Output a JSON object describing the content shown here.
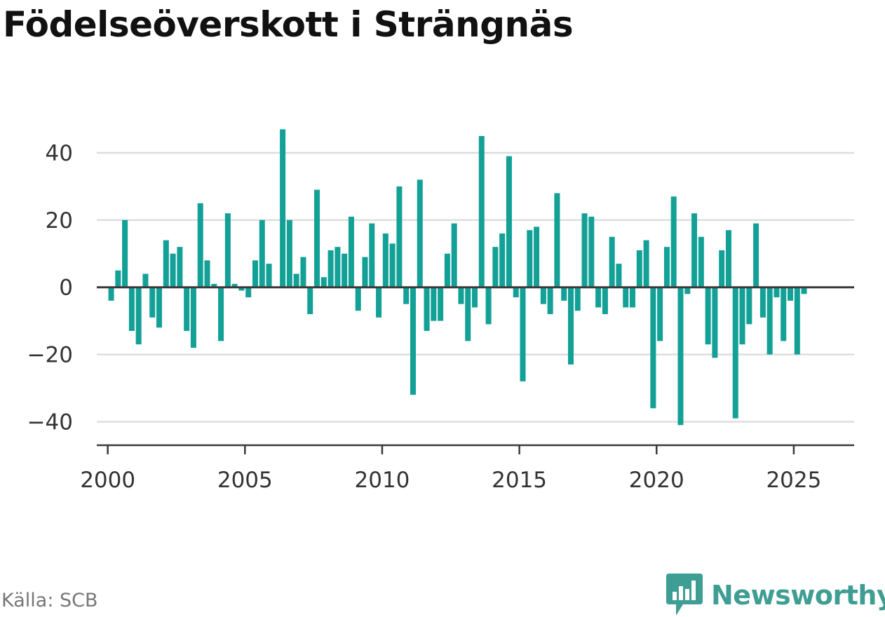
{
  "title": "Födelseöverskott i Strängnäs",
  "source": "Källa: SCB",
  "brand": {
    "name": "Newsworthy",
    "color": "#3f9e93",
    "icon": "bar-chart-speech-bubble-icon"
  },
  "colors": {
    "bar": "#13a197",
    "zero_line": "#3a3a3a",
    "grid": "#dddddd",
    "axis_text": "#333333"
  },
  "chart_data": {
    "type": "bar",
    "title": "Födelseöverskott i Strängnäs",
    "xlabel": "",
    "ylabel": "",
    "x_tick_labels": [
      "2000",
      "2005",
      "2010",
      "2015",
      "2020",
      "2025"
    ],
    "y_tick_labels": [
      "−40",
      "−20",
      "0",
      "20",
      "40"
    ],
    "y_ticks": [
      -40,
      -20,
      0,
      20,
      40
    ],
    "ylim": [
      -47,
      50
    ],
    "xlim": [
      1999.6,
      2027.2
    ],
    "grid": true,
    "start_year": 2000,
    "periods_per_year": 4,
    "values": [
      -4,
      5,
      20,
      -13,
      -17,
      4,
      -9,
      -12,
      14,
      10,
      12,
      -13,
      -18,
      25,
      8,
      1,
      -16,
      22,
      1,
      -1,
      -3,
      8,
      20,
      7,
      0,
      47,
      20,
      4,
      9,
      -8,
      29,
      3,
      11,
      12,
      10,
      21,
      -7,
      9,
      19,
      -9,
      16,
      13,
      30,
      -5,
      -32,
      32,
      -13,
      -10,
      -10,
      10,
      19,
      -5,
      -16,
      -6,
      45,
      -11,
      12,
      16,
      39,
      -3,
      -28,
      17,
      18,
      -5,
      -8,
      28,
      -4,
      -23,
      -7,
      22,
      21,
      -6,
      -8,
      15,
      7,
      -6,
      -6,
      11,
      14,
      -36,
      -16,
      12,
      27,
      -41,
      -2,
      22,
      15,
      -17,
      -21,
      11,
      17,
      -39,
      -17,
      -11,
      19,
      -9,
      -20,
      -3,
      -16,
      -4,
      -20,
      -2
    ]
  }
}
